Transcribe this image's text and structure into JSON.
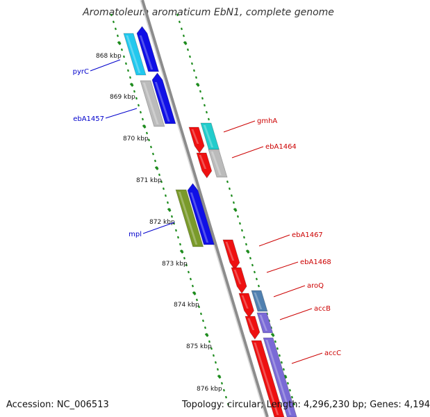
{
  "title": "Aromatoleum aromaticum EbN1, complete genome",
  "footer": {
    "accession": "Accession: NC_006513",
    "topology": "Topology: circular; Length: 4,296,230 bp; Genes: 4,194"
  },
  "ticks": [
    "868 kbp",
    "869 kbp",
    "870 kbp",
    "871 kbp",
    "872 kbp",
    "873 kbp",
    "874 kbp",
    "875 kbp",
    "876 kbp"
  ],
  "genes_left": [
    {
      "label": "pyrC",
      "color": "#0000cc"
    },
    {
      "label": "ebA1457",
      "color": "#0000cc"
    },
    {
      "label": "mpl",
      "color": "#0000cc"
    }
  ],
  "genes_right": [
    {
      "label": "gmhA",
      "color": "#cc0000"
    },
    {
      "label": "ebA1464",
      "color": "#cc0000"
    },
    {
      "label": "ebA1467",
      "color": "#cc0000"
    },
    {
      "label": "ebA1468",
      "color": "#cc0000"
    },
    {
      "label": "aroQ",
      "color": "#cc0000"
    },
    {
      "label": "accB",
      "color": "#cc0000"
    },
    {
      "label": "accC",
      "color": "#cc0000"
    }
  ],
  "colors": {
    "backbone": "#8c8c8c",
    "dots": "#1e8c1e",
    "blue_gene": "#1010e6",
    "red_gene": "#ee1111",
    "cyan": "#22c8ee",
    "teal": "#22cccc",
    "gray": "#bbbbbb",
    "olive": "#7a9a2a",
    "steel": "#5080b0",
    "purple": "#7a6ad6"
  }
}
